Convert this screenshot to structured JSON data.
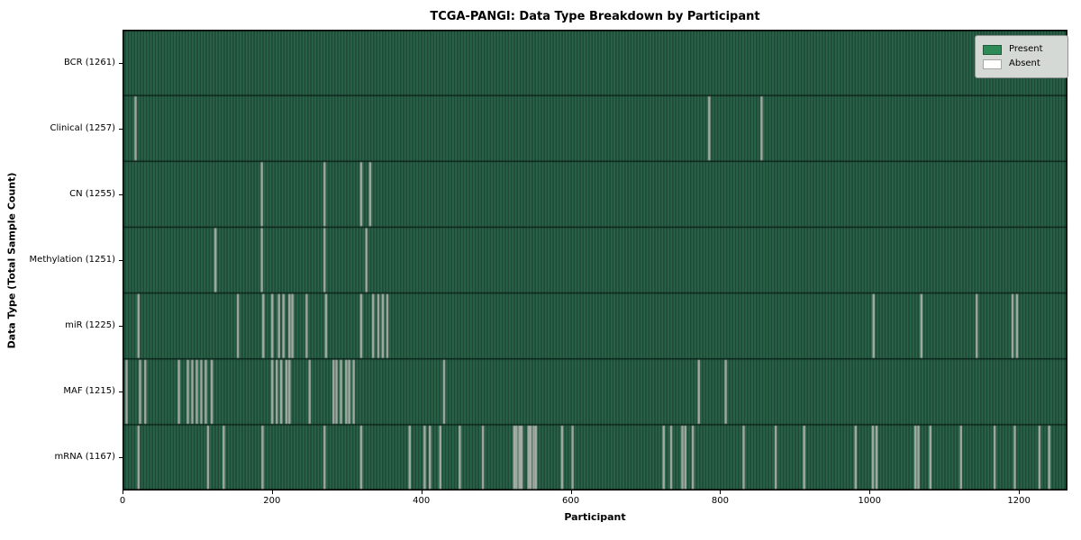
{
  "title": "TCGA-PANGI: Data Type Breakdown by Participant",
  "axes": {
    "x_label": "Participant",
    "y_label": "Data Type (Total Sample Count)"
  },
  "legend": {
    "items": [
      {
        "label": "Present",
        "color": "#2e8b57"
      },
      {
        "label": "Absent",
        "color": "#ffffff"
      }
    ]
  },
  "colors": {
    "present_legend": "#2e8b57",
    "absent_legend": "#ffffff",
    "present_fill_dark": "#1c4434",
    "present_fill_light": "#2e6b4d",
    "absent_fill": "#a9b0a9",
    "row_separator": "#0b2018",
    "plot_border": "#000000"
  },
  "chart_data": {
    "type": "heatmap",
    "title": "TCGA-PANGI: Data Type Breakdown by Participant",
    "xlabel": "Participant",
    "ylabel": "Data Type (Total Sample Count)",
    "x_range": [
      0,
      1265
    ],
    "x_ticks": [
      0,
      200,
      400,
      600,
      800,
      1000,
      1200
    ],
    "grid": false,
    "legend_position": "upper right",
    "cell_states": [
      "Present",
      "Absent"
    ],
    "rows": [
      {
        "label": "BCR (1261)",
        "data_type": "BCR",
        "total_samples": 1261,
        "absent_visible": []
      },
      {
        "label": "Clinical (1257)",
        "data_type": "Clinical",
        "total_samples": 1257,
        "absent_visible": [
          16,
          17,
          784,
          785,
          854,
          855
        ]
      },
      {
        "label": "CN (1255)",
        "data_type": "CN",
        "total_samples": 1255,
        "absent_visible": [
          185,
          186,
          269,
          270,
          318,
          319,
          330,
          331
        ]
      },
      {
        "label": "Methylation (1251)",
        "data_type": "Methylation",
        "total_samples": 1251,
        "absent_visible": [
          123,
          124,
          185,
          186,
          269,
          270,
          325,
          326
        ]
      },
      {
        "label": "miR (1225)",
        "data_type": "miR",
        "total_samples": 1225,
        "absent_visible": [
          20,
          21,
          153,
          154,
          187,
          188,
          199,
          200,
          208,
          209,
          214,
          215,
          222,
          223,
          226,
          227,
          245,
          246,
          271,
          272,
          318,
          319,
          334,
          335,
          341,
          342,
          347,
          348,
          353,
          354,
          1004,
          1005,
          1068,
          1069,
          1142,
          1143,
          1190,
          1191,
          1196,
          1197
        ]
      },
      {
        "label": "MAF (1215)",
        "data_type": "MAF",
        "total_samples": 1215,
        "absent_visible": [
          4,
          5,
          22,
          23,
          29,
          30,
          74,
          75,
          86,
          87,
          92,
          93,
          98,
          99,
          104,
          105,
          110,
          111,
          118,
          119,
          199,
          200,
          205,
          206,
          211,
          212,
          218,
          219,
          222,
          223,
          249,
          250,
          281,
          282,
          285,
          286,
          291,
          292,
          298,
          299,
          302,
          303,
          308,
          309,
          429,
          430,
          770,
          771,
          806,
          807
        ]
      },
      {
        "label": "mRNA (1167)",
        "data_type": "mRNA",
        "total_samples": 1167,
        "absent_visible": [
          20,
          21,
          113,
          114,
          134,
          135,
          186,
          187,
          269,
          270,
          318,
          319,
          383,
          384,
          403,
          404,
          410,
          411,
          424,
          425,
          450,
          451,
          481,
          482,
          523,
          524,
          526,
          527,
          530,
          531,
          533,
          534,
          542,
          543,
          545,
          546,
          549,
          550,
          552,
          553,
          587,
          588,
          601,
          602,
          723,
          724,
          733,
          734,
          748,
          749,
          752,
          753,
          762,
          763,
          830,
          831,
          873,
          874,
          911,
          912,
          980,
          981,
          1003,
          1004,
          1008,
          1009,
          1060,
          1061,
          1064,
          1065,
          1080,
          1081,
          1121,
          1122,
          1166,
          1167,
          1193,
          1194,
          1226,
          1227,
          1239,
          1240
        ]
      }
    ]
  }
}
